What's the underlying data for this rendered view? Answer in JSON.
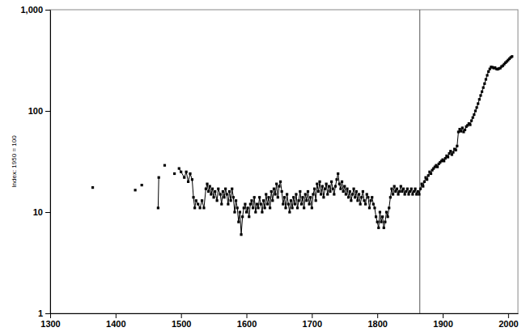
{
  "chart_data": {
    "type": "line",
    "y_label": "Index: 1950 = 100",
    "log": "y",
    "grid": false,
    "color": "#000000",
    "marker": "square",
    "line_style": "solid",
    "x": [
      1365,
      1400,
      1430,
      1435,
      1440,
      1450,
      1465,
      1466,
      1470,
      1475,
      1480,
      1490,
      1495,
      1497,
      1500,
      1505,
      1508,
      1511,
      1514,
      1517,
      1519,
      1521,
      1523,
      1526,
      1529,
      1532,
      1535,
      1538,
      1540,
      1542,
      1544,
      1546,
      1548,
      1550,
      1552,
      1555,
      1557,
      1560,
      1562,
      1564,
      1566,
      1568,
      1570,
      1572,
      1574,
      1576,
      1578,
      1580,
      1582,
      1584,
      1586,
      1588,
      1590,
      1592,
      1594,
      1596,
      1598,
      1600,
      1602,
      1604,
      1606,
      1608,
      1610,
      1612,
      1614,
      1616,
      1618,
      1620,
      1622,
      1624,
      1626,
      1628,
      1630,
      1632,
      1634,
      1636,
      1638,
      1640,
      1642,
      1644,
      1646,
      1648,
      1650,
      1652,
      1654,
      1656,
      1658,
      1660,
      1662,
      1664,
      1666,
      1668,
      1670,
      1672,
      1674,
      1676,
      1678,
      1680,
      1682,
      1684,
      1686,
      1688,
      1690,
      1692,
      1694,
      1696,
      1698,
      1700,
      1702,
      1704,
      1706,
      1708,
      1710,
      1712,
      1714,
      1716,
      1718,
      1720,
      1722,
      1724,
      1726,
      1728,
      1730,
      1732,
      1734,
      1736,
      1738,
      1740,
      1742,
      1744,
      1746,
      1748,
      1750,
      1752,
      1754,
      1756,
      1758,
      1760,
      1762,
      1764,
      1766,
      1768,
      1770,
      1772,
      1774,
      1776,
      1778,
      1780,
      1782,
      1784,
      1786,
      1788,
      1790,
      1792,
      1794,
      1796,
      1798,
      1800,
      1802,
      1804,
      1806,
      1808,
      1810,
      1812,
      1814,
      1816,
      1818,
      1820,
      1822,
      1824,
      1826,
      1828,
      1830,
      1832,
      1834,
      1836,
      1838,
      1840,
      1842,
      1844,
      1846,
      1848,
      1850,
      1852,
      1854,
      1856,
      1858,
      1860,
      1862,
      1864,
      1866,
      1868,
      1870,
      1872,
      1874,
      1876,
      1878,
      1880,
      1882,
      1884,
      1886,
      1888,
      1890,
      1892,
      1894,
      1896,
      1898,
      1900,
      1902,
      1904,
      1906,
      1908,
      1910,
      1912,
      1914,
      1916,
      1918,
      1920,
      1922,
      1924,
      1926,
      1928,
      1930,
      1932,
      1934,
      1936,
      1938,
      1940,
      1942,
      1944,
      1946,
      1948,
      1950,
      1952,
      1954,
      1956,
      1958,
      1960,
      1962,
      1964,
      1966,
      1968,
      1970,
      1972,
      1974,
      1976,
      1978,
      1980,
      1982,
      1984,
      1986,
      1988,
      1990,
      1992,
      1994,
      1996,
      1998,
      2000,
      2002,
      2004,
      2006
    ],
    "values": [
      17.5,
      null,
      16.5,
      null,
      18.5,
      null,
      11,
      22,
      null,
      29,
      null,
      24,
      null,
      27,
      25,
      22,
      25,
      20,
      24,
      21,
      14,
      11,
      13,
      12,
      11,
      13,
      11,
      17,
      19,
      16,
      18,
      15,
      17,
      14,
      16,
      13,
      17,
      15,
      12,
      16,
      14,
      17,
      15,
      12,
      16,
      13,
      17,
      14,
      10,
      13,
      11,
      8,
      10,
      6,
      9,
      11,
      12,
      10,
      11,
      9,
      12,
      13,
      11,
      14,
      10,
      12,
      11,
      14,
      12,
      10,
      13,
      11,
      15,
      12,
      14,
      11,
      16,
      13,
      17,
      15,
      19,
      14,
      18,
      20,
      16,
      12,
      14,
      11,
      15,
      12,
      10,
      13,
      11,
      14,
      12,
      15,
      11,
      13,
      16,
      12,
      14,
      11,
      15,
      13,
      16,
      12,
      14,
      11,
      15,
      17,
      13,
      19,
      16,
      20,
      15,
      18,
      14,
      17,
      19,
      15,
      18,
      16,
      20,
      17,
      15,
      18,
      21,
      24,
      19,
      17,
      20,
      16,
      18,
      15,
      17,
      14,
      16,
      13,
      15,
      17,
      14,
      16,
      13,
      15,
      12,
      14,
      16,
      13,
      12,
      15,
      14,
      11,
      13,
      14,
      12,
      11,
      9,
      8,
      7,
      10,
      8,
      9,
      7,
      8,
      10,
      9,
      11,
      14,
      17,
      15,
      18,
      16,
      17,
      15,
      16,
      18,
      16,
      17,
      15,
      16,
      17,
      15,
      16,
      17,
      15,
      16,
      17,
      15,
      16,
      15,
      17,
      19,
      18,
      20,
      22,
      21,
      23,
      25,
      24,
      26,
      27,
      28,
      29,
      28,
      30,
      31,
      32,
      33,
      32,
      34,
      36,
      35,
      38,
      40,
      37,
      39,
      42,
      41,
      45,
      62,
      66,
      63,
      68,
      62,
      65,
      70,
      72,
      75,
      73,
      80,
      86,
      92,
      100,
      108,
      118,
      130,
      142,
      155,
      170,
      186,
      205,
      225,
      245,
      260,
      272,
      270,
      265,
      268,
      260,
      258,
      262,
      265,
      275,
      280,
      290,
      300,
      308,
      318,
      328,
      338,
      345
    ],
    "xlim": [
      1300,
      2015
    ],
    "xticks": [
      1300,
      1400,
      1500,
      1600,
      1700,
      1800,
      1900,
      2000
    ],
    "ylim": [
      1,
      1000
    ],
    "yticks": [
      1,
      10,
      100,
      {
        "value": 1000,
        "label": "1,000"
      }
    ],
    "vlines": [
      1865
    ]
  }
}
